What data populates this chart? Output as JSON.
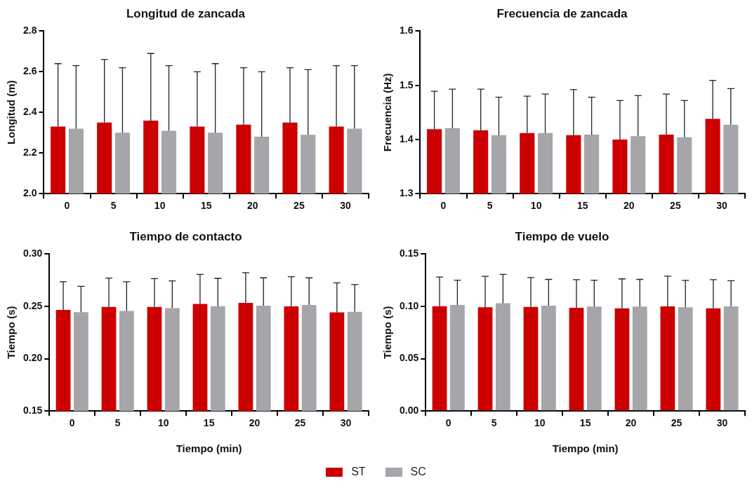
{
  "chart_data": [
    {
      "type": "bar",
      "title": "Longitud de zancada",
      "ylabel": "Longitud (m)",
      "categories": [
        "0",
        "5",
        "10",
        "15",
        "20",
        "25",
        "30"
      ],
      "ylim": [
        2.0,
        2.8
      ],
      "yticks": [
        {
          "value": 2,
          "label": "2.0"
        },
        {
          "value": 2.2,
          "label": "2.2"
        },
        {
          "value": 2.4,
          "label": "2.4"
        },
        {
          "value": 2.6,
          "label": "2.6"
        },
        {
          "value": 2.8,
          "label": "2.8"
        }
      ],
      "legend": "bottom",
      "series": [
        {
          "name": "ST",
          "color": "#cc0000",
          "values": [
            2.33,
            2.35,
            2.36,
            2.33,
            2.34,
            2.35,
            2.33
          ],
          "errors": [
            [
              2.33,
              2.64
            ],
            [
              2.35,
              2.66
            ],
            [
              2.36,
              2.69
            ],
            [
              2.33,
              2.6
            ],
            [
              2.34,
              2.62
            ],
            [
              2.35,
              2.62
            ],
            [
              2.33,
              2.63
            ]
          ]
        },
        {
          "name": "SC",
          "color": "#a5a5aa",
          "values": [
            2.32,
            2.3,
            2.31,
            2.3,
            2.28,
            2.29,
            2.32
          ],
          "errors": [
            [
              2.32,
              2.63
            ],
            [
              2.3,
              2.62
            ],
            [
              2.31,
              2.63
            ],
            [
              2.3,
              2.64
            ],
            [
              2.28,
              2.6
            ],
            [
              2.29,
              2.61
            ],
            [
              2.32,
              2.63
            ]
          ]
        }
      ]
    },
    {
      "type": "bar",
      "title": "Frecuencia de zancada",
      "ylabel": "Frecuencia (Hz)",
      "categories": [
        "0",
        "5",
        "10",
        "15",
        "20",
        "25",
        "30"
      ],
      "ylim": [
        1.3,
        1.6
      ],
      "yticks": [
        1.3,
        1.4,
        1.5,
        1.6
      ],
      "series": [
        {
          "color": "#cc0000",
          "values": [
            1.419,
            1.417,
            1.412,
            1.408,
            1.4,
            1.409,
            1.438
          ],
          "errors": [
            [
              1.419,
              1.489
            ],
            [
              1.417,
              1.493
            ],
            [
              1.412,
              1.48
            ],
            [
              1.408,
              1.492
            ],
            [
              1.4,
              1.472
            ],
            [
              1.409,
              1.484
            ],
            [
              1.438,
              1.509
            ]
          ]
        },
        {
          "color": "#a5a5aa",
          "values": [
            1.421,
            1.408,
            1.412,
            1.409,
            1.406,
            1.404,
            1.427
          ],
          "errors": [
            [
              1.421,
              1.493
            ],
            [
              1.408,
              1.478
            ],
            [
              1.412,
              1.484
            ],
            [
              1.409,
              1.478
            ],
            [
              1.406,
              1.481
            ],
            [
              1.404,
              1.472
            ],
            [
              1.427,
              1.494
            ]
          ]
        }
      ]
    },
    {
      "type": "bar",
      "title": "Tiempo de contacto",
      "xlabel": "Tiempo (min)",
      "ylabel": "Tiempo (s)",
      "categories": [
        "0",
        "5",
        "10",
        "15",
        "20",
        "25",
        "30"
      ],
      "ylim": [
        0.15,
        0.3
      ],
      "yticks": [
        {
          "value": 0.15,
          "label": "0.15"
        },
        {
          "value": 0.2,
          "label": "0.20"
        },
        {
          "value": 0.25,
          "label": "0.25"
        },
        {
          "value": 0.3,
          "label": "0.30"
        }
      ],
      "series": [
        {
          "color": "#cc0000",
          "values": [
            0.2467,
            0.2495,
            0.2495,
            0.2524,
            0.2533,
            0.25,
            0.2443
          ],
          "errors": [
            [
              0.2467,
              0.2735
            ],
            [
              0.2495,
              0.277
            ],
            [
              0.2495,
              0.2765
            ],
            [
              0.2524,
              0.2806
            ],
            [
              0.2533,
              0.2822
            ],
            [
              0.25,
              0.2784
            ],
            [
              0.2443,
              0.2725
            ]
          ]
        },
        {
          "color": "#a5a5aa",
          "values": [
            0.2445,
            0.2457,
            0.2483,
            0.2502,
            0.2507,
            0.2514,
            0.2448
          ],
          "errors": [
            [
              0.2445,
              0.2692
            ],
            [
              0.2457,
              0.2735
            ],
            [
              0.2483,
              0.2744
            ],
            [
              0.2502,
              0.2768
            ],
            [
              0.2507,
              0.2773
            ],
            [
              0.2514,
              0.2773
            ],
            [
              0.2448,
              0.2708
            ]
          ]
        }
      ]
    },
    {
      "type": "bar",
      "title": "Tiempo de vuelo",
      "xlabel": "Tiempo (min)",
      "ylabel": "Tiempo (s)",
      "categories": [
        "0",
        "5",
        "10",
        "15",
        "20",
        "25",
        "30"
      ],
      "ylim": [
        0,
        0.15
      ],
      "yticks": [
        {
          "value": 0,
          "label": "0.00"
        },
        {
          "value": 0.05,
          "label": "0.05"
        },
        {
          "value": 0.1,
          "label": "0.10"
        },
        {
          "value": 0.15,
          "label": "0.15"
        }
      ],
      "series": [
        {
          "color": "#cc0000",
          "values": [
            0.1002,
            0.0991,
            0.0995,
            0.0986,
            0.0981,
            0.1,
            0.0981
          ],
          "errors": [
            [
              0.1002,
              0.128
            ],
            [
              0.0991,
              0.1287
            ],
            [
              0.0995,
              0.1275
            ],
            [
              0.0986,
              0.1256
            ],
            [
              0.0981,
              0.1263
            ],
            [
              0.1,
              0.1289
            ],
            [
              0.0981,
              0.1256
            ]
          ]
        },
        {
          "color": "#a5a5aa",
          "values": [
            0.1014,
            0.1031,
            0.1007,
            0.0998,
            0.0998,
            0.0991,
            0.1
          ],
          "errors": [
            [
              0.1014,
              0.1251
            ],
            [
              0.1031,
              0.1306
            ],
            [
              0.1007,
              0.1258
            ],
            [
              0.0998,
              0.1251
            ],
            [
              0.0998,
              0.1258
            ],
            [
              0.0991,
              0.1249
            ],
            [
              0.1,
              0.1246
            ]
          ]
        }
      ]
    }
  ]
}
